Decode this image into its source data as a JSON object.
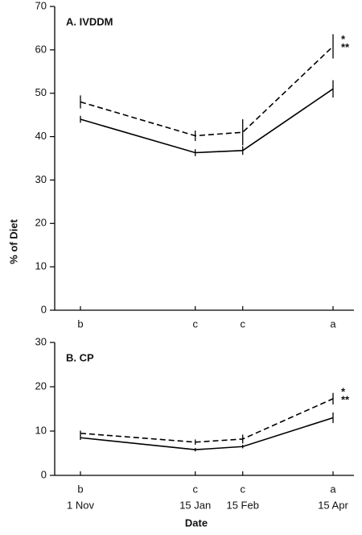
{
  "y_label": "% of Diet",
  "x_label": "Date",
  "chart_data": [
    {
      "type": "line",
      "title": "A. IVDDM",
      "x": [
        "1 Nov",
        "15 Jan",
        "15 Feb",
        "15 Apr"
      ],
      "group_labels": [
        "b",
        "c",
        "c",
        "a"
      ],
      "annotations": [
        "*",
        "**"
      ],
      "ylim": [
        0,
        70
      ],
      "yticks": [
        0,
        10,
        20,
        30,
        40,
        50,
        60,
        70
      ],
      "series": [
        {
          "color": "#000000",
          "dashed": true,
          "values": [
            48,
            40.2,
            41,
            60.8
          ],
          "errors": [
            1.5,
            1.2,
            3,
            2.8
          ]
        },
        {
          "color": "#000000",
          "dashed": false,
          "values": [
            44,
            36.3,
            36.8,
            51
          ],
          "errors": [
            0.8,
            0.8,
            1,
            2
          ]
        }
      ]
    },
    {
      "type": "line",
      "title": "B. CP",
      "x": [
        "1 Nov",
        "15 Jan",
        "15 Feb",
        "15 Apr"
      ],
      "group_labels": [
        "b",
        "c",
        "c",
        "a"
      ],
      "annotations": [
        "*",
        "**"
      ],
      "show_x_labels": true,
      "ylim": [
        0,
        30
      ],
      "yticks": [
        0,
        10,
        20,
        30
      ],
      "series": [
        {
          "color": "#000000",
          "dashed": true,
          "values": [
            9.5,
            7.5,
            8.2,
            17.3
          ],
          "errors": [
            0.6,
            0.6,
            1,
            1.3
          ]
        },
        {
          "color": "#000000",
          "dashed": false,
          "values": [
            8.5,
            5.8,
            6.5,
            13
          ],
          "errors": [
            0.5,
            0.4,
            0.4,
            1.2
          ]
        }
      ]
    }
  ]
}
